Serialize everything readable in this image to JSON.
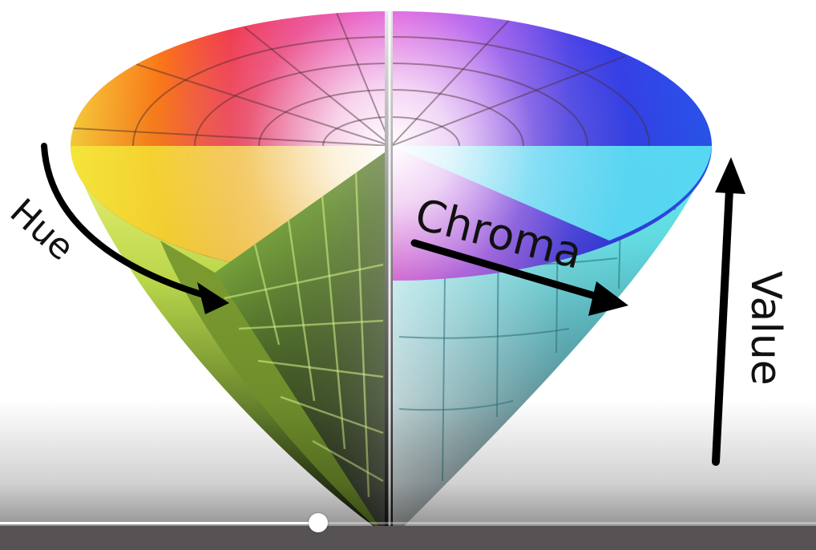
{
  "diagram": {
    "labels": {
      "hue": "Hue",
      "chroma": "Chroma",
      "value": "Value"
    }
  },
  "player": {
    "progress_fraction": 0.39
  }
}
